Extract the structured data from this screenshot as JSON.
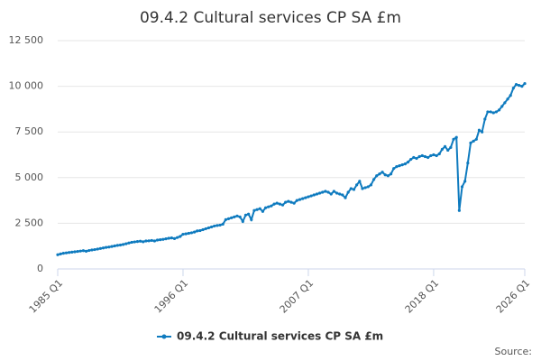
{
  "chart_data": {
    "type": "line",
    "title": "09.4.2 Cultural services CP SA £m",
    "source": "Source:",
    "categories": [
      "1985 Q1",
      null,
      null,
      null,
      null,
      null,
      null,
      null,
      null,
      null,
      null,
      null,
      null,
      null,
      null,
      null,
      null,
      null,
      null,
      null,
      null,
      null,
      null,
      null,
      null,
      null,
      null,
      null,
      null,
      null,
      null,
      null,
      null,
      null,
      null,
      null,
      null,
      null,
      null,
      null,
      null,
      null,
      null,
      null,
      "1996 Q1",
      null,
      null,
      null,
      null,
      null,
      null,
      null,
      null,
      null,
      null,
      null,
      null,
      null,
      null,
      null,
      null,
      null,
      null,
      null,
      null,
      null,
      null,
      null,
      null,
      null,
      null,
      null,
      null,
      null,
      null,
      null,
      null,
      null,
      null,
      null,
      null,
      null,
      null,
      null,
      null,
      null,
      null,
      null,
      "2007 Q1",
      null,
      null,
      null,
      null,
      null,
      null,
      null,
      null,
      null,
      null,
      null,
      null,
      null,
      null,
      null,
      null,
      null,
      null,
      null,
      null,
      null,
      null,
      null,
      null,
      null,
      null,
      null,
      null,
      null,
      null,
      null,
      null,
      null,
      null,
      null,
      null,
      null,
      null,
      null,
      null,
      null,
      null,
      null,
      "2018 Q1",
      null,
      null,
      null,
      null,
      null,
      null,
      null,
      null,
      null,
      null,
      null,
      null,
      null,
      null,
      null,
      null,
      null,
      null,
      null,
      null,
      null,
      null,
      null,
      null,
      null,
      null,
      null,
      null,
      null,
      null,
      null,
      "2026 Q1"
    ],
    "series": [
      {
        "name": "09.4.2 Cultural services CP SA £m",
        "color": "#0f7bbf",
        "values": [
          780,
          820,
          860,
          880,
          900,
          920,
          940,
          960,
          980,
          1000,
          970,
          1010,
          1040,
          1060,
          1090,
          1120,
          1150,
          1180,
          1200,
          1230,
          1260,
          1290,
          1310,
          1340,
          1380,
          1420,
          1460,
          1480,
          1500,
          1520,
          1490,
          1530,
          1540,
          1560,
          1530,
          1580,
          1600,
          1620,
          1650,
          1680,
          1700,
          1660,
          1720,
          1780,
          1900,
          1920,
          1950,
          1980,
          2020,
          2080,
          2100,
          2150,
          2200,
          2250,
          2300,
          2350,
          2380,
          2400,
          2450,
          2700,
          2750,
          2800,
          2850,
          2900,
          2850,
          2600,
          2950,
          3000,
          2700,
          3200,
          3250,
          3300,
          3150,
          3350,
          3400,
          3450,
          3550,
          3600,
          3550,
          3500,
          3650,
          3700,
          3650,
          3600,
          3750,
          3800,
          3850,
          3900,
          3950,
          4000,
          4050,
          4100,
          4150,
          4200,
          4250,
          4200,
          4100,
          4250,
          4150,
          4100,
          4050,
          3900,
          4200,
          4400,
          4350,
          4600,
          4800,
          4400,
          4450,
          4500,
          4600,
          4900,
          5100,
          5200,
          5300,
          5150,
          5100,
          5200,
          5500,
          5600,
          5650,
          5700,
          5750,
          5850,
          6000,
          6100,
          6050,
          6150,
          6200,
          6150,
          6100,
          6200,
          6250,
          6200,
          6300,
          6550,
          6700,
          6500,
          6650,
          7100,
          7200,
          3200,
          4500,
          4800,
          5800,
          6900,
          7000,
          7100,
          7600,
          7500,
          8200,
          8600,
          8600,
          8550,
          8600,
          8700,
          8900,
          9100,
          9300,
          9500,
          9900,
          10100,
          10050,
          10000,
          10150
        ]
      }
    ],
    "ylim": [
      0,
      12500
    ],
    "yticks": [
      0,
      {
        "value": 2500,
        "label": "2 500"
      },
      {
        "value": 5000,
        "label": "5 000"
      },
      {
        "value": 7500,
        "label": "7 500"
      },
      {
        "value": 10000,
        "label": "10 000"
      },
      {
        "value": 12500,
        "label": "12 500"
      }
    ],
    "grid": true
  }
}
